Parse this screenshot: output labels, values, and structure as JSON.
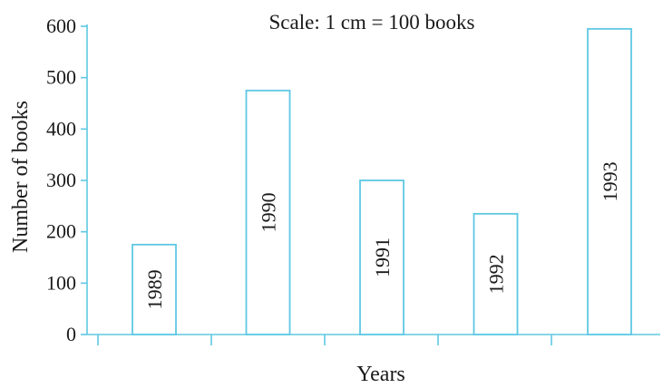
{
  "chart_data": {
    "type": "bar",
    "note": "Scale: 1 cm = 100 books",
    "xlabel": "Years",
    "ylabel": "Number of books",
    "categories": [
      "1989",
      "1990",
      "1991",
      "1992",
      "1993"
    ],
    "values": [
      175,
      475,
      300,
      235,
      595
    ],
    "ylim": [
      0,
      600
    ],
    "yticks": [
      "0",
      "100",
      "200",
      "300",
      "400",
      "500",
      "600"
    ],
    "grid": false,
    "legend": "none",
    "bar_labels_inside": true,
    "colors": {
      "axis": "#5ec8e3",
      "bar_stroke": "#5ec8e3",
      "bar_fill": "#ffffff",
      "text": "#1a1a1a"
    }
  }
}
